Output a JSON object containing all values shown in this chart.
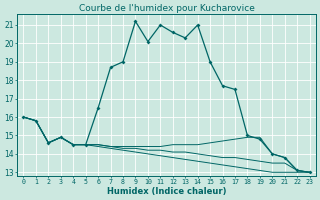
{
  "title": "Courbe de l'humidex pour Kucharovice",
  "xlabel": "Humidex (Indice chaleur)",
  "xlim": [
    -0.5,
    23.5
  ],
  "ylim": [
    12.8,
    21.6
  ],
  "yticks": [
    13,
    14,
    15,
    16,
    17,
    18,
    19,
    20,
    21
  ],
  "xticks": [
    0,
    1,
    2,
    3,
    4,
    5,
    6,
    7,
    8,
    9,
    10,
    11,
    12,
    13,
    14,
    15,
    16,
    17,
    18,
    19,
    20,
    21,
    22,
    23
  ],
  "bg_color": "#cce8e0",
  "line_color": "#006666",
  "grid_color": "#ffffff",
  "series": [
    [
      16.0,
      15.8,
      14.6,
      14.9,
      14.5,
      14.5,
      16.5,
      18.7,
      19.0,
      21.2,
      20.1,
      21.0,
      20.6,
      20.3,
      21.0,
      19.0,
      17.7,
      17.5,
      15.0,
      14.8,
      14.0,
      13.8,
      13.1,
      13.0
    ],
    [
      16.0,
      15.8,
      14.6,
      14.9,
      14.5,
      14.5,
      14.5,
      14.4,
      14.4,
      14.4,
      14.4,
      14.4,
      14.5,
      14.5,
      14.5,
      14.6,
      14.7,
      14.8,
      14.9,
      14.9,
      14.0,
      13.8,
      13.1,
      13.0
    ],
    [
      16.0,
      15.8,
      14.6,
      14.9,
      14.5,
      14.5,
      14.5,
      14.4,
      14.3,
      14.3,
      14.2,
      14.2,
      14.1,
      14.1,
      14.0,
      13.9,
      13.8,
      13.8,
      13.7,
      13.6,
      13.5,
      13.5,
      13.1,
      13.0
    ],
    [
      16.0,
      15.8,
      14.6,
      14.9,
      14.5,
      14.5,
      14.4,
      14.3,
      14.2,
      14.1,
      14.0,
      13.9,
      13.8,
      13.7,
      13.6,
      13.5,
      13.4,
      13.3,
      13.2,
      13.1,
      13.0,
      13.0,
      13.0,
      13.0
    ]
  ],
  "xlabel_fontsize": 6.0,
  "ytick_fontsize": 5.5,
  "xtick_fontsize": 4.8,
  "title_fontsize": 6.5,
  "lw_main": 0.9,
  "lw_other": 0.7,
  "marker_size": 2.0
}
